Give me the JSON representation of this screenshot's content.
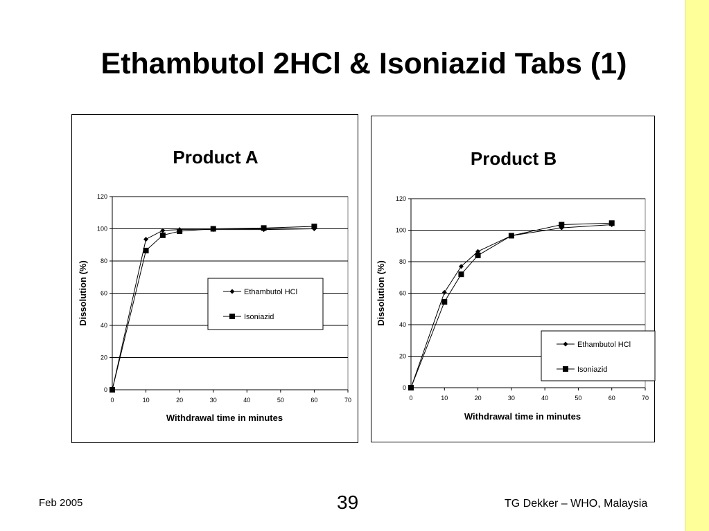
{
  "slide": {
    "title": "Ethambutol 2HCl & Isoniazid Tabs (1)",
    "footer_left": "Feb 2005",
    "page_number": "39",
    "footer_right": "TG Dekker – WHO, Malaysia"
  },
  "colors": {
    "side_band": "#ffff99",
    "series_line": "#000000"
  },
  "chart_data": [
    {
      "type": "line",
      "title": "Product A",
      "xlabel": "Withdrawal time in minutes",
      "ylabel": "Dissolution (%)",
      "xlim": [
        0,
        70
      ],
      "ylim": [
        0,
        120
      ],
      "x_ticks": [
        0,
        10,
        20,
        30,
        40,
        50,
        60,
        70
      ],
      "y_ticks": [
        0,
        20,
        40,
        60,
        80,
        100,
        120
      ],
      "grid": "horizontal",
      "legend_position": "right-center",
      "series": [
        {
          "name": "Ethambutol HCl",
          "marker": "diamond",
          "x": [
            0,
            10,
            15,
            20,
            30,
            45,
            60
          ],
          "y": [
            0,
            93.5,
            99,
            99.5,
            99.5,
            99.5,
            100
          ]
        },
        {
          "name": "Isoniazid",
          "marker": "square",
          "x": [
            0,
            10,
            15,
            20,
            30,
            45,
            60
          ],
          "y": [
            0,
            86.5,
            96,
            98.5,
            100,
            100.5,
            101.5
          ]
        }
      ]
    },
    {
      "type": "line",
      "title": "Product B",
      "xlabel": "Withdrawal time in minutes",
      "ylabel": "Dissolution (%)",
      "xlim": [
        0,
        70
      ],
      "ylim": [
        0,
        120
      ],
      "x_ticks": [
        0,
        10,
        20,
        30,
        40,
        50,
        60,
        70
      ],
      "y_ticks": [
        0,
        20,
        40,
        60,
        80,
        100,
        120
      ],
      "grid": "horizontal",
      "legend_position": "bottom-right",
      "series": [
        {
          "name": "Ethambutol HCl",
          "marker": "diamond",
          "x": [
            0,
            10,
            15,
            20,
            30,
            45,
            60
          ],
          "y": [
            0,
            60.5,
            77,
            86.5,
            96.5,
            101.5,
            103.5
          ]
        },
        {
          "name": "Isoniazid",
          "marker": "square",
          "x": [
            0,
            10,
            15,
            20,
            30,
            45,
            60
          ],
          "y": [
            0,
            54.5,
            72,
            84,
            96.5,
            103.5,
            104.5
          ]
        }
      ]
    }
  ]
}
